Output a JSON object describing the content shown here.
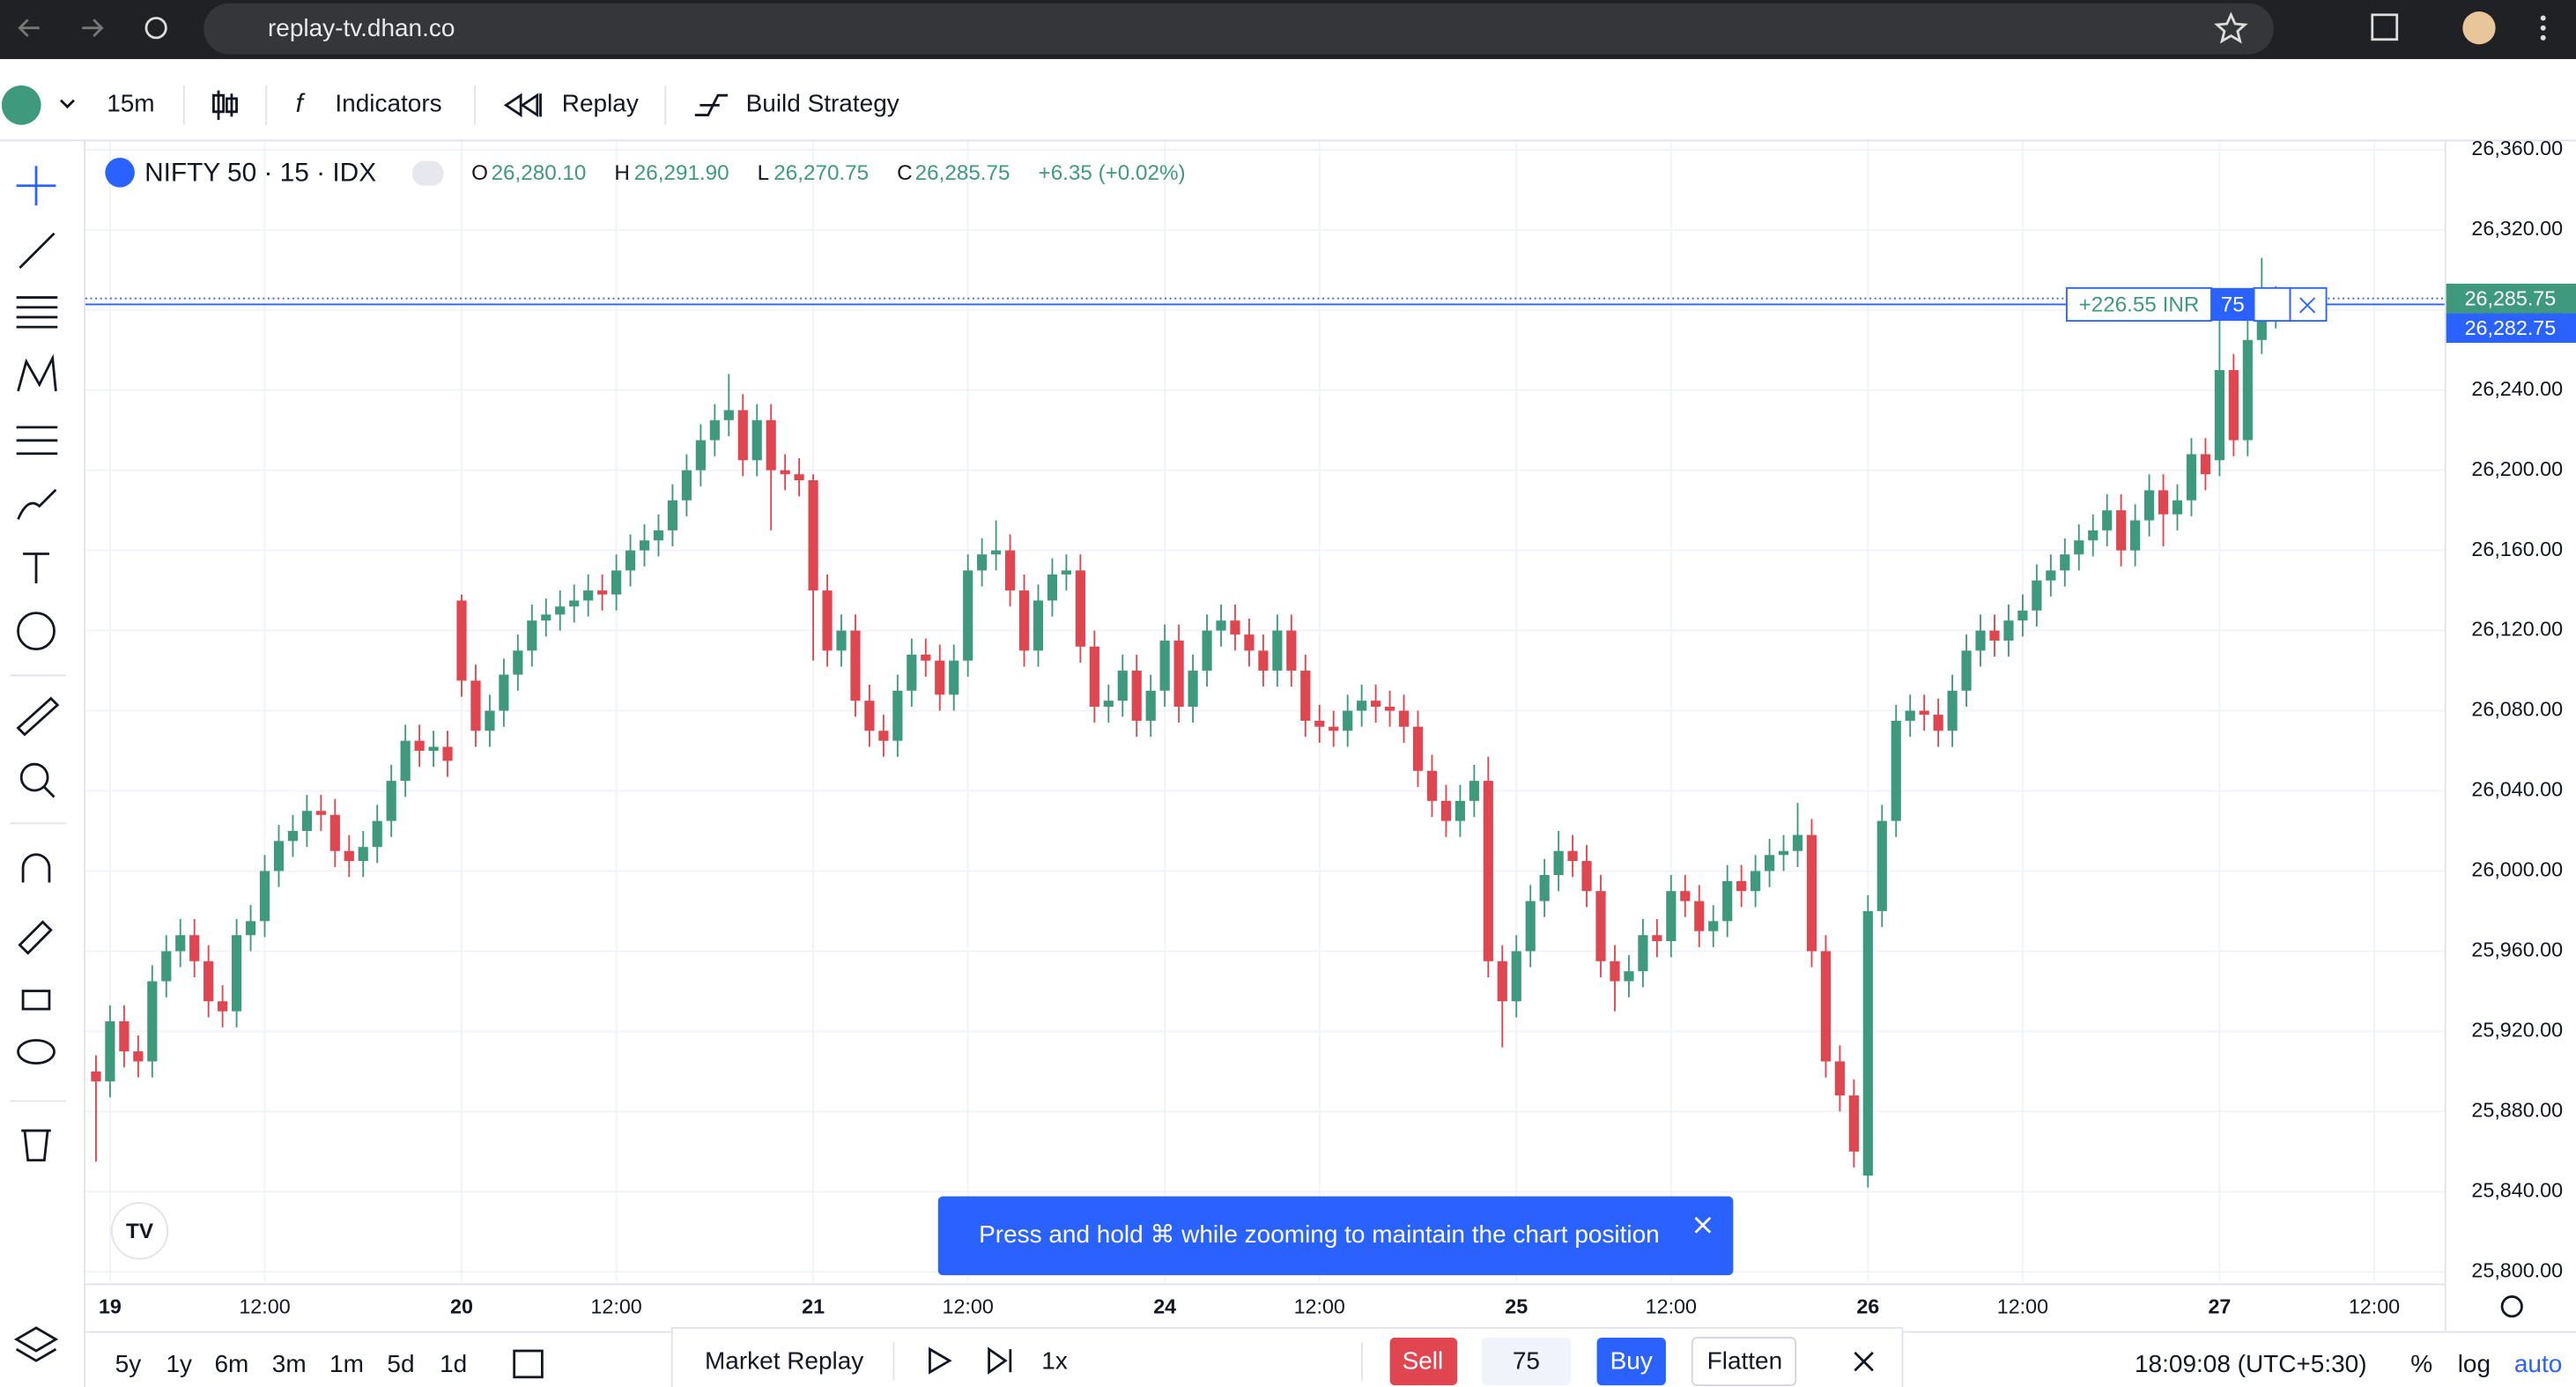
{
  "browser": {
    "url": "replay-tv.dhan.co"
  },
  "toolbar": {
    "interval": "15m",
    "indicators": "Indicators",
    "replay": "Replay",
    "strategy": "Build Strategy"
  },
  "legend": {
    "symbol": "NIFTY 50 · 15 · IDX",
    "o_key": "O",
    "o": "26,280.10",
    "h_key": "H",
    "h": "26,291.90",
    "l_key": "L",
    "l": "26,270.75",
    "c_key": "C",
    "c": "26,285.75",
    "change": "+6.35 (+0.02%)"
  },
  "position": {
    "pnl": "+226.55 INR",
    "qty": "75",
    "price": 26282.75,
    "price_label": "26,282.75",
    "last_price": 26285.75,
    "last_price_label": "26,285.75"
  },
  "toast": "Press and hold ⌘ while zooming to maintain the chart position",
  "bottom": {
    "ranges": [
      "5y",
      "1y",
      "6m",
      "3m",
      "1m",
      "5d",
      "1d"
    ],
    "market_replay": "Market Replay",
    "speed": "1x",
    "sell": "Sell",
    "qty": "75",
    "buy": "Buy",
    "flatten": "Flatten",
    "time": "18:09:08 (UTC+5:30)",
    "percent": "%",
    "log": "log",
    "auto": "auto"
  },
  "chart_data": {
    "type": "candlestick",
    "up_color": "#3f9a7d",
    "down_color": "#e0464f",
    "grid": true,
    "xlim": [
      -0.4,
      167
    ],
    "xticks": [
      {
        "value": 1,
        "label": "19"
      },
      {
        "value": 12,
        "label": "12:00"
      },
      {
        "value": 26,
        "label": "20"
      },
      {
        "value": 37,
        "label": "12:00"
      },
      {
        "value": 51,
        "label": "21"
      },
      {
        "value": 62,
        "label": "12:00"
      },
      {
        "value": 76,
        "label": "24"
      },
      {
        "value": 87,
        "label": "12:00"
      },
      {
        "value": 101,
        "label": "25"
      },
      {
        "value": 112,
        "label": "12:00"
      },
      {
        "value": 126,
        "label": "26"
      },
      {
        "value": 137,
        "label": "12:00"
      },
      {
        "value": 151,
        "label": "27"
      },
      {
        "value": 162,
        "label": "12:00"
      }
    ],
    "ylim": [
      25795,
      26362.5
    ],
    "yticks": [
      {
        "value": 25800,
        "label": "25,800.00"
      },
      {
        "value": 25840,
        "label": "25,840.00"
      },
      {
        "value": 25880,
        "label": "25,880.00"
      },
      {
        "value": 25920,
        "label": "25,920.00"
      },
      {
        "value": 25960,
        "label": "25,960.00"
      },
      {
        "value": 26000,
        "label": "26,000.00"
      },
      {
        "value": 26040,
        "label": "26,040.00"
      },
      {
        "value": 26080,
        "label": "26,080.00"
      },
      {
        "value": 26120,
        "label": "26,120.00"
      },
      {
        "value": 26160,
        "label": "26,160.00"
      },
      {
        "value": 26200,
        "label": "26,200.00"
      },
      {
        "value": 26240,
        "label": "26,240.00"
      },
      {
        "value": 26280,
        "label": "26,280.00"
      },
      {
        "value": 26320,
        "label": "26,320.00"
      },
      {
        "value": 26360,
        "label": "26,360.00"
      }
    ],
    "open": [
      25900,
      25895,
      25925,
      25910,
      25905,
      25945,
      25960,
      25968,
      25955,
      25935,
      25930,
      25968,
      25975,
      26000,
      26015,
      26020,
      26030,
      26028,
      26010,
      26005,
      26012,
      26025,
      26045,
      26065,
      26060,
      26062,
      26135,
      26095,
      26070,
      26080,
      26098,
      26110,
      26125,
      26128,
      26132,
      26135,
      26140,
      26138,
      26150,
      26160,
      26165,
      26170,
      26185,
      26200,
      26215,
      26225,
      26230,
      26205,
      26225,
      26200,
      26198,
      26195,
      26140,
      26110,
      26120,
      26085,
      26070,
      26065,
      26090,
      26108,
      26105,
      26088,
      26105,
      26150,
      26158,
      26160,
      26140,
      26110,
      26135,
      26148,
      26150,
      26112,
      26082,
      26085,
      26100,
      26075,
      26090,
      26115,
      26082,
      26100,
      26120,
      26125,
      26118,
      26110,
      26100,
      26120,
      26100,
      26075,
      26072,
      26070,
      26080,
      26085,
      26082,
      26080,
      26072,
      26050,
      26035,
      26025,
      26035,
      26045,
      25955,
      25935,
      25960,
      25985,
      25998,
      26010,
      26005,
      25990,
      25955,
      25945,
      25950,
      25968,
      25965,
      25990,
      25985,
      25970,
      25975,
      25995,
      25990,
      26000,
      26008,
      26010,
      26018,
      25960,
      25905,
      25888,
      25848,
      25980,
      26025,
      26075,
      26080,
      26078,
      26070,
      26090,
      26110,
      26120,
      26115,
      26125,
      26130,
      26145,
      26150,
      26158,
      26165,
      26170,
      26180,
      26160,
      26175,
      26190,
      26178,
      26185,
      26208,
      26205,
      26250,
      26215,
      26265,
      26280.1
    ],
    "high": [
      25908,
      25933,
      25933,
      25918,
      25953,
      25968,
      25976,
      25976,
      25963,
      25943,
      25976,
      25983,
      26008,
      26023,
      26028,
      26038,
      26038,
      26036,
      26018,
      26020,
      26033,
      26053,
      26073,
      26073,
      26070,
      26070,
      26138,
      26103,
      26088,
      26106,
      26118,
      26133,
      26136,
      26140,
      26143,
      26148,
      26148,
      26158,
      26168,
      26173,
      26178,
      26193,
      26208,
      26223,
      26233,
      26248,
      26238,
      26233,
      26233,
      26208,
      26206,
      26198,
      26148,
      26128,
      26128,
      26093,
      26078,
      26098,
      26116,
      26116,
      26113,
      26113,
      26158,
      26166,
      26175,
      26168,
      26148,
      26143,
      26156,
      26158,
      26158,
      26120,
      26093,
      26108,
      26108,
      26098,
      26123,
      26123,
      26108,
      26128,
      26133,
      26133,
      26126,
      26118,
      26128,
      26128,
      26108,
      26083,
      26080,
      26088,
      26093,
      26093,
      26090,
      26088,
      26080,
      26058,
      26043,
      26043,
      26053,
      26057,
      25963,
      25968,
      25993,
      26006,
      26020,
      26018,
      26013,
      25998,
      25963,
      25958,
      25976,
      25976,
      25998,
      25998,
      25993,
      25983,
      26003,
      26003,
      26008,
      26016,
      26018,
      26034,
      26026,
      25968,
      25913,
      25896,
      25988,
      26033,
      26083,
      26088,
      26088,
      26086,
      26098,
      26118,
      26128,
      26128,
      26133,
      26138,
      26153,
      26158,
      26166,
      26173,
      26178,
      26188,
      26188,
      26183,
      26198,
      26198,
      26193,
      26216,
      26216,
      26285,
      26258,
      26278,
      26306,
      26291.9
    ],
    "low": [
      25855,
      25887,
      25902,
      25897,
      25897,
      25937,
      25952,
      25947,
      25927,
      25922,
      25922,
      25960,
      25967,
      25992,
      26007,
      26012,
      26020,
      26002,
      25997,
      25997,
      26004,
      26017,
      26037,
      26052,
      26052,
      26047,
      26087,
      26062,
      26062,
      26072,
      26090,
      26102,
      26117,
      26120,
      26124,
      26127,
      26130,
      26130,
      26142,
      26152,
      26157,
      26162,
      26177,
      26192,
      26207,
      26217,
      26197,
      26197,
      26170,
      26190,
      26187,
      26105,
      26102,
      26102,
      26077,
      26062,
      26057,
      26057,
      26082,
      26097,
      26080,
      26080,
      26097,
      26142,
      26150,
      26132,
      26102,
      26102,
      26127,
      26140,
      26104,
      26074,
      26074,
      26077,
      26067,
      26067,
      26082,
      26074,
      26074,
      26092,
      26112,
      26110,
      26102,
      26092,
      26092,
      26092,
      26067,
      26064,
      26062,
      26062,
      26072,
      26074,
      26072,
      26064,
      26042,
      26027,
      26017,
      26017,
      26027,
      25947,
      25912,
      25927,
      25952,
      25977,
      25990,
      25997,
      25982,
      25947,
      25930,
      25937,
      25942,
      25957,
      25957,
      25977,
      25962,
      25962,
      25967,
      25982,
      25982,
      25992,
      26000,
      26002,
      25952,
      25897,
      25880,
      25852,
      25842,
      25972,
      26017,
      26067,
      26070,
      26062,
      26062,
      26082,
      26102,
      26107,
      26107,
      26117,
      26122,
      26137,
      26142,
      26150,
      26157,
      26162,
      26152,
      26152,
      26167,
      26162,
      26170,
      26177,
      26190,
      26197,
      26207,
      26207,
      26258,
      26270.75
    ],
    "close": [
      25895,
      25925,
      25910,
      25905,
      25945,
      25960,
      25968,
      25955,
      25935,
      25930,
      25968,
      25975,
      26000,
      26015,
      26020,
      26030,
      26028,
      26010,
      26005,
      26012,
      26025,
      26045,
      26065,
      26060,
      26062,
      26055,
      26095,
      26070,
      26080,
      26098,
      26110,
      26125,
      26128,
      26132,
      26135,
      26140,
      26138,
      26150,
      26160,
      26165,
      26170,
      26185,
      26200,
      26215,
      26225,
      26230,
      26205,
      26225,
      26200,
      26198,
      26195,
      26140,
      26110,
      26120,
      26085,
      26070,
      26065,
      26090,
      26108,
      26105,
      26088,
      26105,
      26150,
      26158,
      26160,
      26140,
      26110,
      26135,
      26148,
      26150,
      26112,
      26082,
      26085,
      26100,
      26075,
      26090,
      26115,
      26082,
      26100,
      26120,
      26125,
      26118,
      26110,
      26100,
      26120,
      26100,
      26075,
      26072,
      26070,
      26080,
      26085,
      26082,
      26080,
      26072,
      26050,
      26035,
      26025,
      26035,
      26045,
      25955,
      25935,
      25960,
      25985,
      25998,
      26010,
      26005,
      25990,
      25955,
      25945,
      25950,
      25968,
      25965,
      25990,
      25985,
      25970,
      25975,
      25995,
      25990,
      26000,
      26008,
      26010,
      26018,
      25960,
      25905,
      25888,
      25860,
      25980,
      26025,
      26075,
      26080,
      26078,
      26070,
      26090,
      26110,
      26120,
      26115,
      26125,
      26130,
      26145,
      26150,
      26158,
      26165,
      26170,
      26180,
      26160,
      26175,
      26190,
      26178,
      26185,
      26208,
      26198,
      26250,
      26215,
      26265,
      26280.1,
      26285.75
    ]
  }
}
